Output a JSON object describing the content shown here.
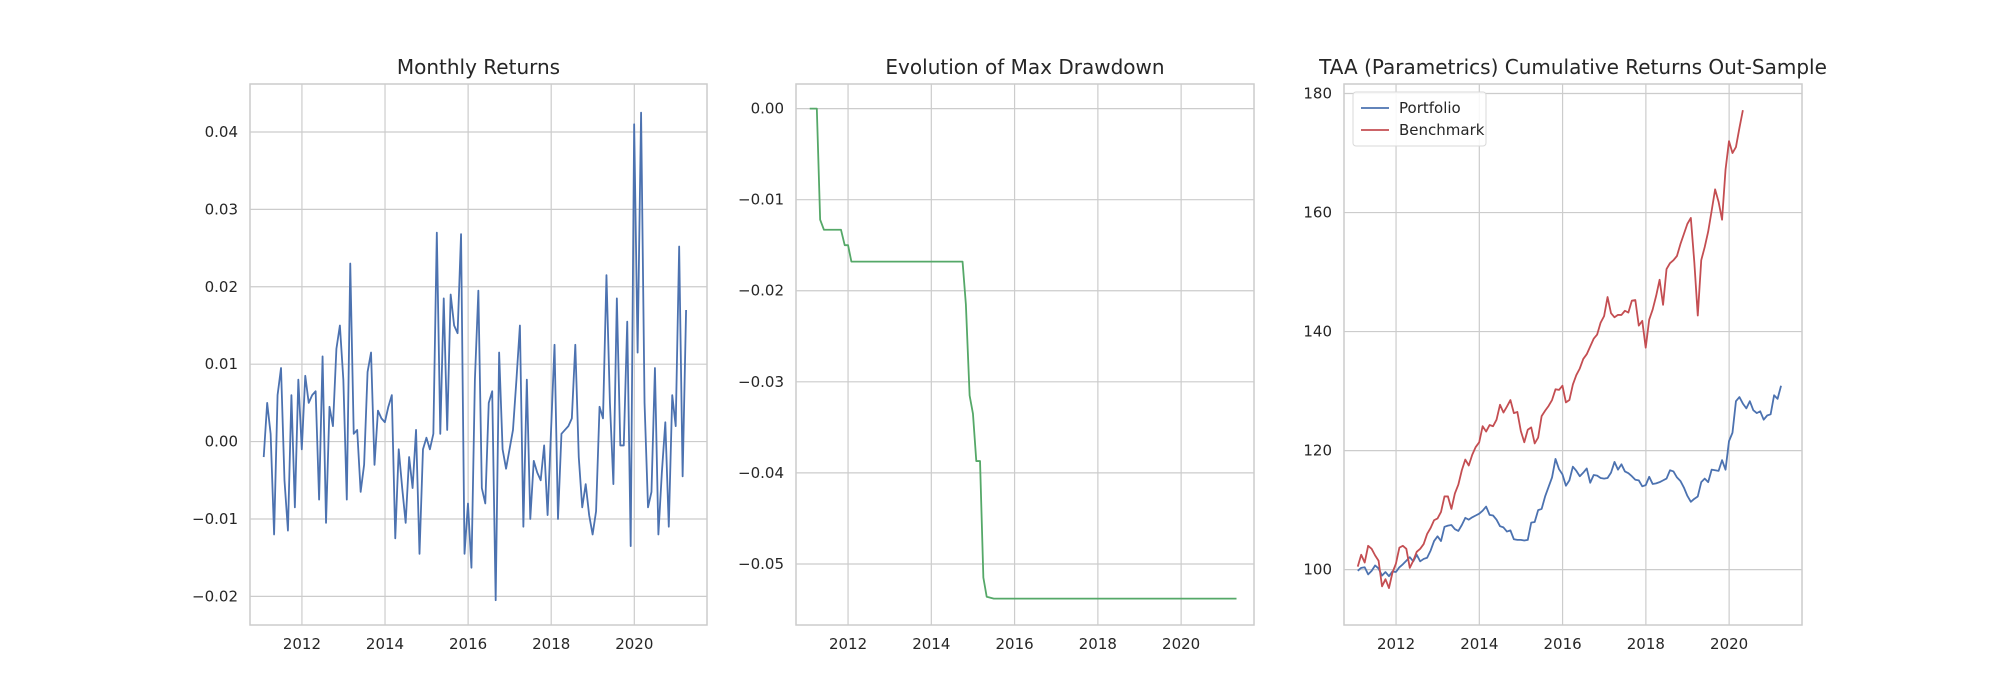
{
  "colors": {
    "grid": "#cccccc",
    "frame": "#cccccc",
    "returns": "#4c72b0",
    "drawdown": "#55a868",
    "portfolio": "#4c72b0",
    "benchmark": "#c44e52"
  },
  "chart_data": [
    {
      "type": "line",
      "title": "Monthly Returns",
      "xlabel": "",
      "ylabel": "",
      "grid": true,
      "xlim": [
        2010.75,
        2021.75
      ],
      "ylim": [
        -0.0237,
        0.0462
      ],
      "xticks": [
        2012,
        2014,
        2016,
        2018,
        2020
      ],
      "xtick_labels": [
        "2012",
        "2014",
        "2016",
        "2018",
        "2020"
      ],
      "yticks": [
        -0.02,
        -0.01,
        0.0,
        0.01,
        0.02,
        0.03,
        0.04
      ],
      "ytick_labels": [
        "−0.02",
        "−0.01",
        "0.00",
        "0.01",
        "0.02",
        "0.03",
        "0.04"
      ],
      "series": [
        {
          "color": "returns",
          "x_start": 2011.08,
          "x_step": 0.0833333,
          "values": [
            -0.002,
            0.005,
            0.001,
            -0.012,
            0.006,
            0.0095,
            -0.005,
            -0.0115,
            0.006,
            -0.0085,
            0.008,
            -0.001,
            0.0085,
            0.005,
            0.006,
            0.0065,
            -0.0075,
            0.011,
            -0.0105,
            0.0045,
            0.002,
            0.012,
            0.015,
            0.008,
            -0.0075,
            0.023,
            0.001,
            0.0015,
            -0.0065,
            -0.003,
            0.009,
            0.0115,
            -0.003,
            0.004,
            0.003,
            0.0025,
            0.0045,
            0.006,
            -0.0125,
            -0.001,
            -0.006,
            -0.0105,
            -0.002,
            -0.006,
            0.0015,
            -0.0145,
            -0.001,
            0.0005,
            -0.001,
            0.001,
            0.027,
            0.001,
            0.0185,
            0.0015,
            0.019,
            0.015,
            0.014,
            0.0268,
            -0.0145,
            -0.008,
            -0.0163,
            0.008,
            0.0195,
            -0.006,
            -0.008,
            0.005,
            0.0065,
            -0.0205,
            0.0115,
            -0.001,
            -0.0035,
            -0.001,
            0.0015,
            0.008,
            0.015,
            -0.011,
            0.008,
            -0.01,
            -0.0025,
            -0.004,
            -0.005,
            -0.0005,
            -0.0095,
            0.0015,
            0.0125,
            -0.01,
            0.001,
            0.0015,
            0.002,
            0.003,
            0.0125,
            -0.002,
            -0.0085,
            -0.0055,
            -0.0095,
            -0.012,
            -0.009,
            0.0045,
            0.003,
            0.0215,
            0.005,
            -0.0055,
            0.0185,
            -0.0005,
            -0.0005,
            0.0155,
            -0.0135,
            0.041,
            0.0115,
            0.0425,
            0.005,
            -0.0085,
            -0.0065,
            0.0095,
            -0.012,
            -0.004,
            0.0025,
            -0.011,
            0.006,
            0.002,
            0.0252,
            -0.0045,
            0.017
          ]
        }
      ]
    },
    {
      "type": "line",
      "title": "Evolution of Max Drawdown",
      "xlabel": "",
      "ylabel": "",
      "grid": true,
      "xlim": [
        2010.75,
        2021.75
      ],
      "ylim": [
        -0.0567,
        0.0027
      ],
      "xticks": [
        2012,
        2014,
        2016,
        2018,
        2020
      ],
      "xtick_labels": [
        "2012",
        "2014",
        "2016",
        "2018",
        "2020"
      ],
      "yticks": [
        0.0,
        -0.01,
        -0.02,
        -0.03,
        -0.04,
        -0.05
      ],
      "ytick_labels": [
        "0.00",
        "−0.01",
        "−0.02",
        "−0.03",
        "−0.04",
        "−0.05"
      ],
      "series": [
        {
          "color": "drawdown",
          "x": [
            2011.08,
            2011.25,
            2011.33,
            2011.42,
            2011.5,
            2011.83,
            2011.92,
            2012.0,
            2012.08,
            2014.67,
            2014.75,
            2014.83,
            2014.92,
            2015.0,
            2015.08,
            2015.17,
            2015.25,
            2015.33,
            2015.5,
            2021.33
          ],
          "values": [
            0.0,
            0.0,
            -0.0122,
            -0.0133,
            -0.0133,
            -0.0133,
            -0.015,
            -0.015,
            -0.0168,
            -0.0168,
            -0.0168,
            -0.0215,
            -0.0315,
            -0.0335,
            -0.0387,
            -0.0387,
            -0.0515,
            -0.0536,
            -0.0538,
            -0.0538
          ]
        }
      ]
    },
    {
      "type": "line",
      "title": "TAA (Parametrics) Cumulative Returns Out-Sample",
      "xlabel": "",
      "ylabel": "",
      "grid": true,
      "legend": "upper-left",
      "xlim": [
        2010.75,
        2021.75
      ],
      "ylim": [
        90.7,
        181.6
      ],
      "xticks": [
        2012,
        2014,
        2016,
        2018,
        2020
      ],
      "xtick_labels": [
        "2012",
        "2014",
        "2016",
        "2018",
        "2020"
      ],
      "yticks": [
        100,
        120,
        140,
        160,
        180
      ],
      "ytick_labels": [
        "100",
        "120",
        "140",
        "160",
        "180"
      ],
      "series": [
        {
          "name": "Portfolio",
          "color": "portfolio",
          "x_start": 2011.08,
          "x_step": 0.0833333,
          "values": [
            99.8,
            100.3,
            100.4,
            99.2,
            99.8,
            100.7,
            100.2,
            99.0,
            99.6,
            98.9,
            99.7,
            99.6,
            100.4,
            100.9,
            101.5,
            102.1,
            101.4,
            102.5,
            101.4,
            101.8,
            102.0,
            103.2,
            104.8,
            105.6,
            104.8,
            107.2,
            107.4,
            107.5,
            106.8,
            106.5,
            107.5,
            108.7,
            108.4,
            108.8,
            109.1,
            109.4,
            109.9,
            110.6,
            109.2,
            109.1,
            108.4,
            107.3,
            107.1,
            106.4,
            106.6,
            105.1,
            105.0,
            105.0,
            104.9,
            105.0,
            107.9,
            108.0,
            110.0,
            110.2,
            112.3,
            113.9,
            115.5,
            118.6,
            116.9,
            116.0,
            114.1,
            115.0,
            117.3,
            116.6,
            115.7,
            116.3,
            117.0,
            114.6,
            115.9,
            115.8,
            115.4,
            115.3,
            115.4,
            116.3,
            118.1,
            116.8,
            117.7,
            116.5,
            116.2,
            115.7,
            115.1,
            115.0,
            114.0,
            114.2,
            115.6,
            114.4,
            114.5,
            114.7,
            115.0,
            115.3,
            116.7,
            116.5,
            115.5,
            114.9,
            113.8,
            112.4,
            111.4,
            111.9,
            112.3,
            114.7,
            115.3,
            114.7,
            116.8,
            116.7,
            116.6,
            118.4,
            116.8,
            121.6,
            123.0,
            128.3,
            129.0,
            127.9,
            127.1,
            128.3,
            126.8,
            126.3,
            126.6,
            125.2,
            125.9,
            126.1,
            129.3,
            128.7,
            130.9
          ]
        },
        {
          "name": "Benchmark",
          "color": "benchmark",
          "x_start": 2011.08,
          "x_step": 0.0833333,
          "values": [
            100.5,
            102.5,
            101.2,
            104.0,
            103.5,
            102.4,
            101.5,
            97.2,
            98.4,
            96.9,
            99.5,
            101.0,
            103.7,
            104.0,
            103.5,
            100.3,
            101.5,
            103.0,
            103.5,
            104.3,
            106.0,
            107.0,
            108.3,
            108.6,
            109.7,
            112.3,
            112.3,
            110.2,
            112.8,
            114.3,
            116.7,
            118.5,
            117.5,
            119.3,
            120.6,
            121.4,
            124.1,
            123.2,
            124.3,
            124.1,
            125.2,
            127.7,
            126.4,
            127.4,
            128.5,
            126.3,
            126.5,
            123.3,
            121.4,
            123.5,
            123.9,
            121.2,
            122.2,
            125.8,
            126.7,
            127.5,
            128.5,
            130.3,
            130.2,
            130.9,
            128.1,
            128.5,
            131.1,
            132.7,
            133.8,
            135.4,
            136.2,
            137.5,
            138.8,
            139.5,
            141.5,
            142.6,
            145.8,
            143.1,
            142.4,
            142.8,
            142.8,
            143.5,
            143.2,
            145.2,
            145.3,
            141.0,
            141.8,
            137.3,
            142.0,
            143.7,
            146.0,
            148.7,
            144.5,
            150.5,
            151.5,
            152.0,
            152.7,
            154.7,
            156.4,
            158.1,
            159.1,
            151.7,
            142.7,
            152.0,
            154.2,
            156.8,
            160.3,
            163.9,
            161.8,
            158.8,
            167.2,
            172.0,
            170.0,
            171.0,
            174.2,
            177.2
          ]
        }
      ]
    }
  ]
}
